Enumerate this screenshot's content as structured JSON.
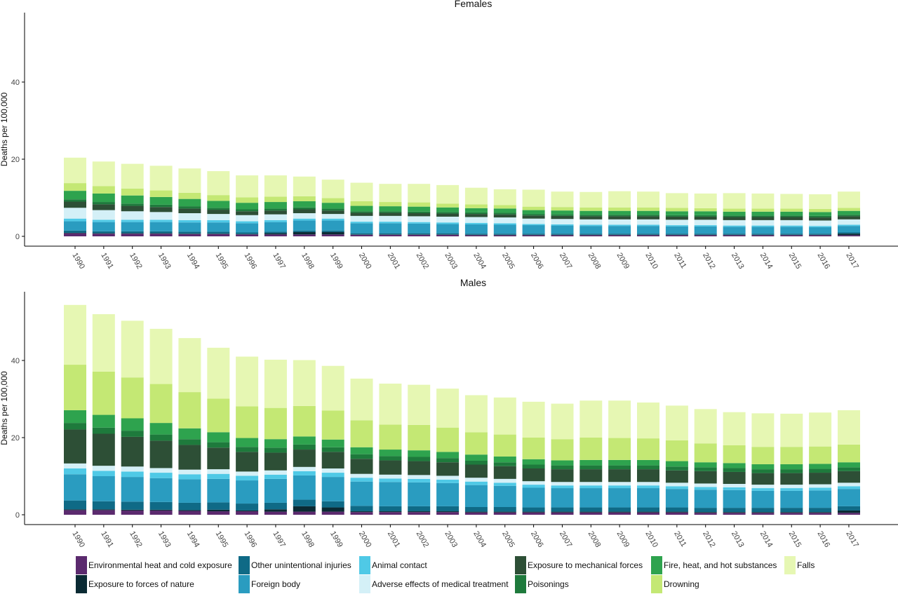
{
  "chart_data": {
    "type": "bar",
    "stacked": true,
    "ylabel": "Deaths per 100,000",
    "ylim": [
      0,
      57
    ],
    "yticks": [
      0,
      20,
      40
    ],
    "grid": false,
    "legend_position": "bottom",
    "categories": [
      "1990",
      "1991",
      "1992",
      "1993",
      "1994",
      "1995",
      "1996",
      "1997",
      "1998",
      "1999",
      "2000",
      "2001",
      "2002",
      "2003",
      "2004",
      "2005",
      "2006",
      "2007",
      "2008",
      "2009",
      "2010",
      "2011",
      "2012",
      "2013",
      "2014",
      "2015",
      "2016",
      "2017"
    ],
    "causes": [
      {
        "name": "Environmental heat and cold exposure",
        "color": "#5b2a6e"
      },
      {
        "name": "Exposure to forces of nature",
        "color": "#0a2a33"
      },
      {
        "name": "Other unintentional injuries",
        "color": "#0f6a86"
      },
      {
        "name": "Foreign body",
        "color": "#2a9cc0"
      },
      {
        "name": "Animal contact",
        "color": "#4fc9e6"
      },
      {
        "name": "Adverse effects of medical treatment",
        "color": "#d4f0f7"
      },
      {
        "name": "Exposure to mechanical forces",
        "color": "#2d4f36"
      },
      {
        "name": "Poisonings",
        "color": "#1e7a3c"
      },
      {
        "name": "Fire, heat, and hot substances",
        "color": "#2ea34e"
      },
      {
        "name": "Drowning",
        "color": "#c4e874"
      },
      {
        "name": "Falls",
        "color": "#e6f7b3"
      }
    ],
    "panels": [
      {
        "title": "Females",
        "series": [
          {
            "name": "Environmental heat and cold exposure",
            "values": [
              0.8,
              0.7,
              0.7,
              0.7,
              0.6,
              0.6,
              0.5,
              0.5,
              0.5,
              0.5,
              0.4,
              0.4,
              0.4,
              0.4,
              0.3,
              0.3,
              0.3,
              0.3,
              0.3,
              0.3,
              0.3,
              0.3,
              0.3,
              0.3,
              0.3,
              0.3,
              0.3,
              0.3
            ]
          },
          {
            "name": "Exposure to forces of nature",
            "values": [
              0.1,
              0.1,
              0.1,
              0.1,
              0.1,
              0.1,
              0.1,
              0.3,
              0.6,
              0.6,
              0.1,
              0.1,
              0.1,
              0.1,
              0.1,
              0.1,
              0.1,
              0.1,
              0.1,
              0.1,
              0.1,
              0.1,
              0.1,
              0.1,
              0.1,
              0.1,
              0.1,
              0.4
            ]
          },
          {
            "name": "Other unintentional injuries",
            "values": [
              0.6,
              0.5,
              0.5,
              0.5,
              0.5,
              0.5,
              0.4,
              0.4,
              0.4,
              0.4,
              0.3,
              0.3,
              0.3,
              0.3,
              0.3,
              0.3,
              0.3,
              0.3,
              0.3,
              0.3,
              0.3,
              0.3,
              0.3,
              0.3,
              0.3,
              0.3,
              0.3,
              0.3
            ]
          },
          {
            "name": "Foreign body",
            "values": [
              2.4,
              2.4,
              2.4,
              2.4,
              2.4,
              2.4,
              2.4,
              2.5,
              2.6,
              2.6,
              2.6,
              2.6,
              2.5,
              2.4,
              2.4,
              2.3,
              2.2,
              2.1,
              2.0,
              2.0,
              2.0,
              1.9,
              1.9,
              1.8,
              1.8,
              1.8,
              1.7,
              1.7
            ]
          },
          {
            "name": "Animal contact",
            "values": [
              0.7,
              0.6,
              0.6,
              0.6,
              0.6,
              0.6,
              0.5,
              0.5,
              0.5,
              0.5,
              0.4,
              0.4,
              0.4,
              0.4,
              0.4,
              0.4,
              0.3,
              0.3,
              0.3,
              0.3,
              0.3,
              0.3,
              0.3,
              0.3,
              0.3,
              0.3,
              0.3,
              0.3
            ]
          },
          {
            "name": "Adverse effects of medical treatment",
            "values": [
              2.8,
              2.5,
              2.2,
              2.0,
              1.8,
              1.6,
              1.6,
              1.5,
              1.4,
              1.2,
              1.5,
              1.5,
              1.5,
              1.5,
              1.5,
              1.5,
              1.4,
              1.4,
              1.4,
              1.4,
              1.4,
              1.4,
              1.4,
              1.4,
              1.4,
              1.4,
              1.4,
              1.4
            ]
          },
          {
            "name": "Exposure to mechanical forces",
            "values": [
              1.6,
              1.5,
              1.4,
              1.3,
              1.2,
              1.1,
              1.0,
              1.0,
              1.0,
              0.9,
              0.8,
              0.8,
              0.8,
              0.8,
              0.8,
              0.8,
              0.8,
              0.8,
              0.8,
              0.8,
              0.8,
              0.8,
              0.8,
              0.8,
              0.8,
              0.8,
              0.8,
              0.8
            ]
          },
          {
            "name": "Poisonings",
            "values": [
              0.6,
              0.6,
              0.6,
              0.6,
              0.6,
              0.5,
              0.5,
              0.5,
              0.5,
              0.5,
              0.4,
              0.4,
              0.4,
              0.4,
              0.4,
              0.4,
              0.4,
              0.4,
              0.4,
              0.4,
              0.4,
              0.4,
              0.4,
              0.4,
              0.4,
              0.4,
              0.4,
              0.4
            ]
          },
          {
            "name": "Fire, heat, and hot substances",
            "values": [
              2.2,
              2.2,
              2.1,
              2.0,
              1.9,
              1.8,
              1.7,
              1.7,
              1.6,
              1.5,
              1.4,
              1.3,
              1.3,
              1.2,
              1.1,
              1.1,
              1.0,
              1.0,
              1.0,
              1.0,
              1.0,
              1.0,
              1.0,
              1.0,
              1.0,
              1.0,
              1.0,
              1.0
            ]
          },
          {
            "name": "Drowning",
            "values": [
              2.0,
              1.9,
              1.8,
              1.7,
              1.6,
              1.5,
              1.4,
              1.4,
              1.3,
              1.2,
              1.2,
              1.1,
              1.1,
              1.0,
              1.0,
              0.9,
              0.9,
              0.9,
              0.9,
              0.9,
              0.9,
              0.9,
              0.8,
              0.8,
              0.8,
              0.8,
              0.8,
              0.8
            ]
          },
          {
            "name": "Falls",
            "values": [
              6.6,
              6.4,
              6.4,
              6.4,
              6.3,
              6.2,
              5.7,
              5.5,
              5.1,
              4.8,
              4.8,
              4.7,
              4.8,
              4.8,
              4.3,
              4.1,
              4.4,
              4.0,
              4.0,
              4.2,
              4.1,
              3.8,
              3.8,
              4.0,
              3.9,
              3.8,
              3.8,
              4.2
            ]
          }
        ]
      },
      {
        "title": "Males",
        "series": [
          {
            "name": "Environmental heat and cold exposure",
            "values": [
              1.2,
              1.2,
              1.1,
              1.1,
              1.0,
              0.9,
              0.9,
              0.8,
              0.8,
              0.8,
              0.7,
              0.7,
              0.7,
              0.7,
              0.6,
              0.6,
              0.6,
              0.6,
              0.6,
              0.6,
              0.6,
              0.6,
              0.5,
              0.5,
              0.5,
              0.5,
              0.5,
              0.5
            ]
          },
          {
            "name": "Exposure to forces of nature",
            "values": [
              0.2,
              0.2,
              0.2,
              0.2,
              0.2,
              0.4,
              0.2,
              0.6,
              1.4,
              1.1,
              0.2,
              0.2,
              0.2,
              0.2,
              0.2,
              0.2,
              0.2,
              0.2,
              0.2,
              0.2,
              0.2,
              0.2,
              0.2,
              0.2,
              0.2,
              0.2,
              0.2,
              0.6
            ]
          },
          {
            "name": "Other unintentional injuries",
            "values": [
              2.3,
              2.1,
              2.1,
              2.0,
              1.9,
              1.9,
              1.8,
              1.7,
              1.7,
              1.6,
              1.4,
              1.3,
              1.3,
              1.3,
              1.2,
              1.2,
              1.1,
              1.1,
              1.1,
              1.1,
              1.1,
              1.1,
              1.1,
              1.1,
              1.1,
              1.1,
              1.1,
              1.1
            ]
          },
          {
            "name": "Foreign body",
            "values": [
              6.8,
              6.5,
              6.4,
              6.2,
              6.1,
              6.1,
              6.0,
              6.2,
              6.3,
              6.3,
              6.3,
              6.3,
              6.2,
              6.0,
              5.7,
              5.5,
              5.1,
              5.0,
              5.0,
              5.0,
              5.0,
              4.8,
              4.7,
              4.6,
              4.4,
              4.4,
              4.5,
              4.5
            ]
          },
          {
            "name": "Animal contact",
            "values": [
              1.5,
              1.4,
              1.4,
              1.4,
              1.3,
              1.3,
              1.2,
              1.1,
              1.1,
              1.1,
              1.0,
              0.9,
              0.9,
              0.9,
              0.9,
              0.8,
              0.8,
              0.7,
              0.7,
              0.7,
              0.7,
              0.7,
              0.7,
              0.7,
              0.7,
              0.7,
              0.7,
              0.7
            ]
          },
          {
            "name": "Adverse effects of medical treatment",
            "values": [
              1.3,
              1.3,
              1.3,
              1.2,
              1.2,
              1.2,
              1.1,
              1.1,
              1.1,
              1.1,
              1.0,
              1.0,
              1.0,
              1.0,
              1.0,
              1.0,
              0.9,
              0.9,
              0.9,
              0.9,
              0.9,
              0.9,
              0.9,
              0.9,
              0.9,
              0.9,
              0.9,
              0.9
            ]
          },
          {
            "name": "Exposure to mechanical forces",
            "values": [
              8.8,
              8.3,
              7.7,
              7.1,
              6.4,
              5.6,
              5.1,
              4.6,
              4.5,
              4.3,
              3.9,
              3.7,
              3.6,
              3.5,
              3.4,
              3.3,
              3.3,
              3.3,
              3.3,
              3.3,
              3.3,
              3.2,
              3.2,
              3.1,
              3.0,
              3.0,
              3.0,
              3.0
            ]
          },
          {
            "name": "Poisonings",
            "values": [
              1.7,
              1.6,
              1.6,
              1.6,
              1.5,
              1.4,
              1.3,
              1.3,
              1.3,
              1.2,
              1.2,
              1.1,
              1.1,
              1.1,
              1.0,
              1.0,
              1.0,
              1.0,
              1.0,
              1.0,
              1.0,
              1.0,
              1.0,
              1.0,
              1.0,
              1.0,
              1.0,
              1.0
            ]
          },
          {
            "name": "Fire, heat, and hot substances",
            "values": [
              3.3,
              3.3,
              3.2,
              3.0,
              2.8,
              2.6,
              2.3,
              2.2,
              2.1,
              2.0,
              1.8,
              1.7,
              1.7,
              1.6,
              1.6,
              1.5,
              1.4,
              1.3,
              1.4,
              1.4,
              1.4,
              1.4,
              1.3,
              1.3,
              1.3,
              1.3,
              1.3,
              1.3
            ]
          },
          {
            "name": "Drowning",
            "values": [
              11.8,
              11.2,
              10.6,
              10.1,
              9.4,
              8.7,
              8.2,
              8.1,
              7.9,
              7.5,
              7.0,
              6.5,
              6.6,
              6.3,
              5.8,
              5.7,
              5.6,
              5.5,
              5.8,
              5.7,
              5.6,
              5.4,
              4.9,
              4.6,
              4.5,
              4.5,
              4.5,
              4.6
            ]
          },
          {
            "name": "Falls",
            "values": [
              15.5,
              14.9,
              14.7,
              14.3,
              14.0,
              13.2,
              12.9,
              12.5,
              11.9,
              11.6,
              10.8,
              10.6,
              10.4,
              10.1,
              9.6,
              9.6,
              9.3,
              9.2,
              9.6,
              9.7,
              9.3,
              9.0,
              8.9,
              8.6,
              8.7,
              8.6,
              8.8,
              8.9
            ]
          }
        ]
      }
    ]
  }
}
